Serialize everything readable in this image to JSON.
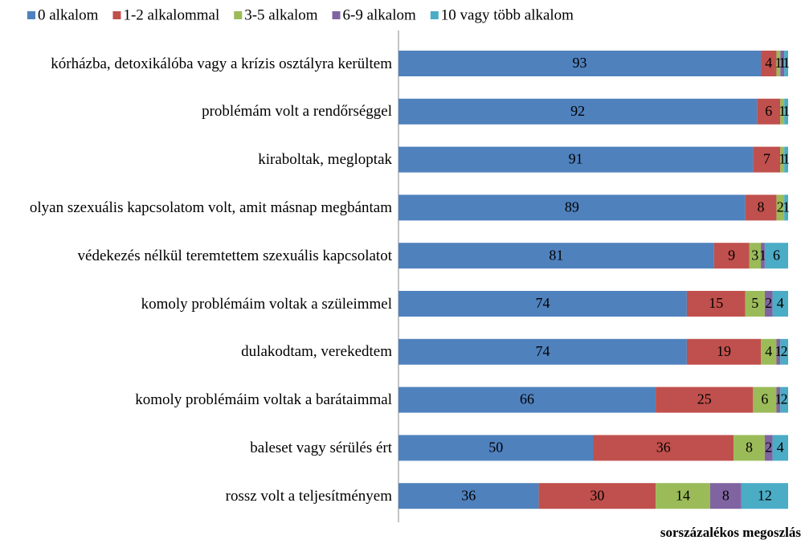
{
  "chart_data": {
    "type": "stacked-bar-horizontal",
    "categories": [
      "kórházba, detoxikálóba vagy a krízis osztályra kerültem",
      "problémám volt a rendőrséggel",
      "kiraboltak, megloptak",
      "olyan szexuális kapcsolatom volt, amit másnap megbántam",
      "védekezés nélkül teremtettem szexuális kapcsolatot",
      "komoly problémáim voltak a szüleimmel",
      "dulakodtam, verekedtem",
      "komoly problémáim voltak a barátaimmal",
      "baleset vagy sérülés ért",
      "rossz volt a teljesítményem"
    ],
    "series": [
      {
        "name": "0 alkalom",
        "color": "#4f81bd",
        "values": [
          93,
          92,
          91,
          89,
          81,
          74,
          74,
          66,
          50,
          36
        ]
      },
      {
        "name": "1-2 alkalommal",
        "color": "#c0504d",
        "values": [
          4,
          6,
          7,
          8,
          9,
          15,
          19,
          25,
          36,
          30
        ]
      },
      {
        "name": "3-5 alkalom",
        "color": "#9bbb59",
        "values": [
          1,
          1,
          1,
          2,
          3,
          5,
          4,
          6,
          8,
          14
        ]
      },
      {
        "name": "6-9 alkalom",
        "color": "#8064a2",
        "values": [
          1,
          null,
          null,
          null,
          1,
          2,
          1,
          1,
          2,
          8
        ]
      },
      {
        "name": "10 vagy több alkalom",
        "color": "#4bacc6",
        "values": [
          1,
          1,
          1,
          1,
          6,
          4,
          2,
          2,
          4,
          12
        ]
      }
    ],
    "xlim": [
      0,
      100
    ],
    "x_label": "sorszázalékos megoszlás",
    "legend": "top"
  }
}
